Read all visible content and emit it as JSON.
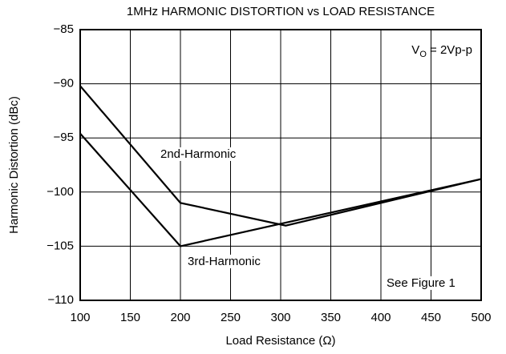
{
  "chart_data": {
    "type": "line",
    "title": "1MHz HARMONIC DISTORTION vs LOAD RESISTANCE",
    "x_label": "Load Resistance (Ω)",
    "y_label": "Harmonic Distortion (dBc)",
    "series": [
      {
        "name": "2nd-Harmonic",
        "color": "#000000",
        "x": [
          100,
          200,
          305,
          500
        ],
        "values": [
          -90.2,
          -101,
          -103.1,
          -98.8
        ]
      },
      {
        "name": "3rd-Harmonic",
        "color": "#000000",
        "x": [
          100,
          200,
          500
        ],
        "values": [
          -94.6,
          -105,
          -98.8
        ]
      }
    ],
    "vo_label": {
      "base": "V",
      "sub": "O",
      "rest": " = 2Vp-p"
    },
    "note": "See Figure 1",
    "xlim": [
      100,
      500
    ],
    "xticks": [
      100,
      150,
      200,
      250,
      300,
      350,
      400,
      450,
      500
    ],
    "ylim": [
      -110,
      -85
    ],
    "yticks": [
      {
        "value": -110,
        "label": "−110"
      },
      {
        "value": -105,
        "label": "−105"
      },
      {
        "value": -100,
        "label": "−100"
      },
      {
        "value": -95,
        "label": "−95"
      },
      {
        "value": -90,
        "label": "−90"
      },
      {
        "value": -85,
        "label": "−85"
      }
    ],
    "grid": true
  }
}
